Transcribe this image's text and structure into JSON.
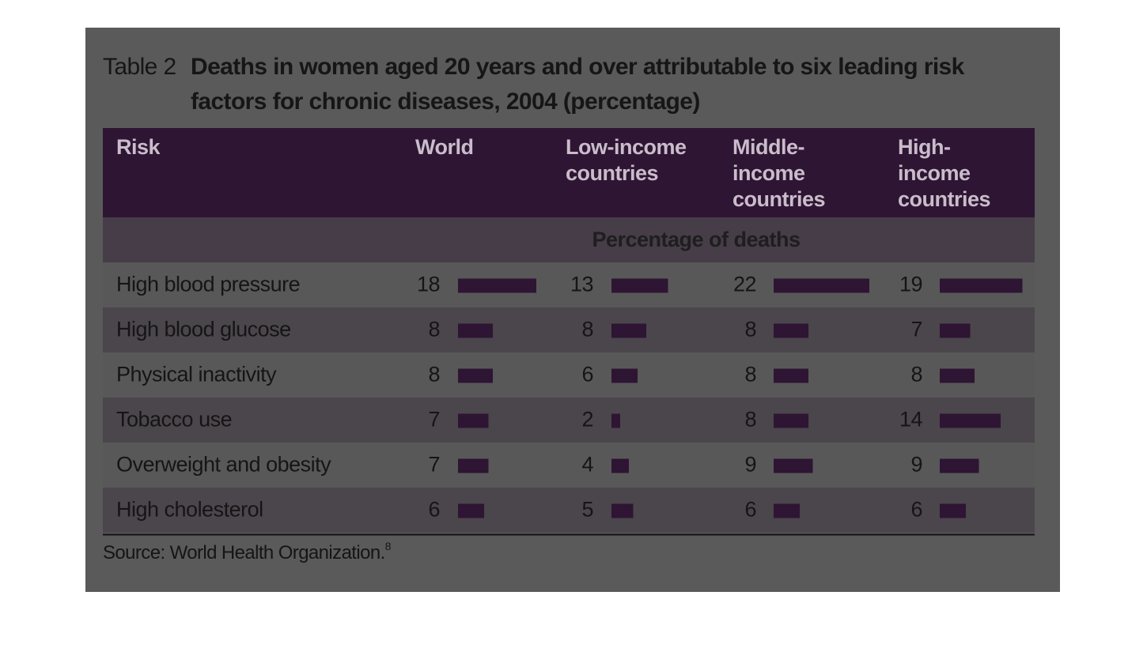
{
  "table": {
    "label": "Table 2",
    "title_lines": [
      "Deaths in women aged 20 years and over attributable to six leading risk",
      "factors for chronic diseases, 2004 (percentage)"
    ],
    "header": [
      [
        "Risk"
      ],
      [
        "World"
      ],
      [
        "Low-income",
        "countries"
      ],
      [
        "Middle-",
        "income",
        "countries"
      ],
      [
        "High-",
        "income",
        "countries"
      ]
    ],
    "subheader": "Percentage of deaths",
    "rows": [
      {
        "risk": "High blood pressure",
        "values": [
          18,
          13,
          22,
          19
        ]
      },
      {
        "risk": "High blood glucose",
        "values": [
          8,
          8,
          8,
          7
        ]
      },
      {
        "risk": "Physical inactivity",
        "values": [
          8,
          6,
          8,
          8
        ]
      },
      {
        "risk": "Tobacco use",
        "values": [
          7,
          2,
          8,
          14
        ]
      },
      {
        "risk": "Overweight and obesity",
        "values": [
          7,
          4,
          9,
          9
        ]
      },
      {
        "risk": "High cholesterol",
        "values": [
          6,
          5,
          6,
          6
        ]
      }
    ],
    "source": "Source: World Health Organization.",
    "source_note": "8"
  }
}
